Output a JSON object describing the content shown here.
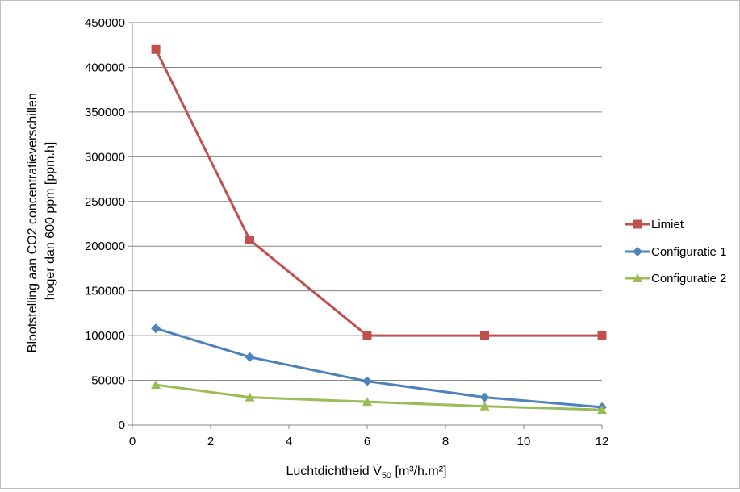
{
  "chart_data": {
    "type": "line",
    "title": "",
    "xlabel": "Luchtdichtheid V̇",
    "xlabel_subscript": "50",
    "xlabel_unit": " [m³/h.m²]",
    "ylabel_lines": [
      "Blootstelling aan CO2 concentratieverschillen",
      "hoger dan 600 ppm [ppm.h]"
    ],
    "xlim": [
      0,
      12
    ],
    "ylim": [
      0,
      450000
    ],
    "xticks": [
      0,
      2,
      4,
      6,
      8,
      10,
      12
    ],
    "yticks": [
      0,
      50000,
      100000,
      150000,
      200000,
      250000,
      300000,
      350000,
      400000,
      450000
    ],
    "grid": "horizontal",
    "legend_position": "right",
    "series": [
      {
        "name": "Limiet",
        "color": "#c0504d",
        "marker": "square",
        "x": [
          0.6,
          3,
          6,
          9,
          12
        ],
        "y": [
          420000,
          207000,
          100000,
          100000,
          100000
        ]
      },
      {
        "name": "Configuratie 1",
        "color": "#4f81bd",
        "marker": "diamond",
        "x": [
          0.6,
          3,
          6,
          9,
          12
        ],
        "y": [
          108000,
          76000,
          49000,
          31000,
          20000
        ]
      },
      {
        "name": "Configuratie 2",
        "color": "#9bbb59",
        "marker": "triangle",
        "x": [
          0.6,
          3,
          6,
          9,
          12
        ],
        "y": [
          45000,
          31000,
          26000,
          21000,
          17000
        ]
      }
    ]
  }
}
